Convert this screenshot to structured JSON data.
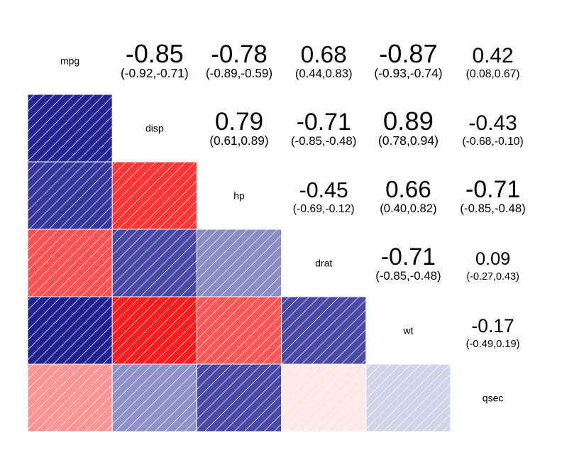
{
  "chart_data": {
    "type": "heatmap",
    "subtype": "correlogram",
    "variables": [
      "mpg",
      "disp",
      "hp",
      "drat",
      "wt",
      "qsec"
    ],
    "lower_panel": "shade",
    "upper_panel": "correlation with confidence interval",
    "grid": false,
    "legend": "none",
    "colors": {
      "positive": "#ff0000",
      "negative": "#00007f",
      "neutral": "#ffffff",
      "cell_border": "#ffffff",
      "hatch": "#ffffff"
    },
    "cells": [
      {
        "row": "disp",
        "col": "mpg",
        "r": "-0.85",
        "ci": "(-0.92,-0.71)"
      },
      {
        "row": "hp",
        "col": "mpg",
        "r": "-0.78",
        "ci": "(-0.89,-0.59)"
      },
      {
        "row": "drat",
        "col": "mpg",
        "r": "0.68",
        "ci": "(0.44,0.83)"
      },
      {
        "row": "wt",
        "col": "mpg",
        "r": "-0.87",
        "ci": "(-0.93,-0.74)"
      },
      {
        "row": "qsec",
        "col": "mpg",
        "r": "0.42",
        "ci": "(0.08,0.67)"
      },
      {
        "row": "hp",
        "col": "disp",
        "r": "0.79",
        "ci": "(0.61,0.89)"
      },
      {
        "row": "drat",
        "col": "disp",
        "r": "-0.71",
        "ci": "(-0.85,-0.48)"
      },
      {
        "row": "wt",
        "col": "disp",
        "r": "0.89",
        "ci": "(0.78,0.94)"
      },
      {
        "row": "qsec",
        "col": "disp",
        "r": "-0.43",
        "ci": "(-0.68,-0.10)"
      },
      {
        "row": "drat",
        "col": "hp",
        "r": "-0.45",
        "ci": "(-0.69,-0.12)"
      },
      {
        "row": "wt",
        "col": "hp",
        "r": "0.66",
        "ci": "(0.40,0.82)"
      },
      {
        "row": "qsec",
        "col": "hp",
        "r": "-0.71",
        "ci": "(-0.85,-0.48)"
      },
      {
        "row": "wt",
        "col": "drat",
        "r": "-0.71",
        "ci": "(-0.85,-0.48)"
      },
      {
        "row": "qsec",
        "col": "drat",
        "r": "0.09",
        "ci": "(-0.27,0.43)"
      },
      {
        "row": "qsec",
        "col": "wt",
        "r": "-0.17",
        "ci": "(-0.49,0.19)"
      }
    ]
  }
}
